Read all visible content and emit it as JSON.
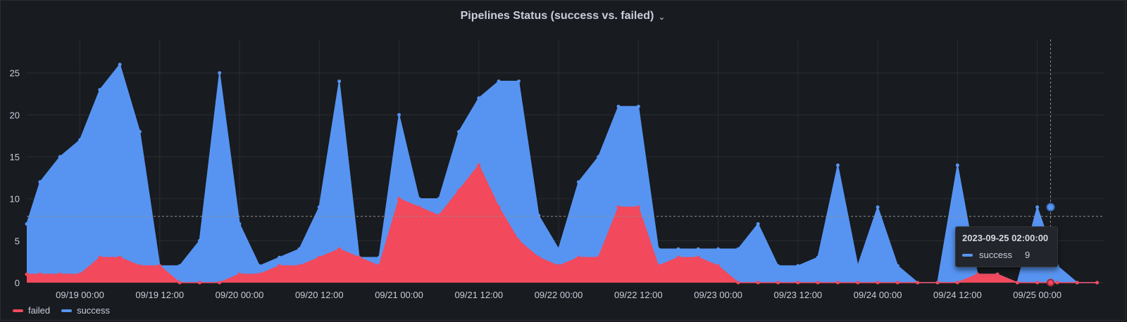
{
  "panel": {
    "title": "Pipelines Status (success vs. failed)",
    "menu_icon": "chevron-down-icon"
  },
  "tooltip": {
    "time": "2023-09-25 02:00:00",
    "series_name": "success",
    "value": "9"
  },
  "colors": {
    "failed": "#f2495c",
    "success": "#5794f2",
    "background": "#181b1f",
    "grid": "#2b2d32"
  },
  "chart_data": {
    "type": "area",
    "stacked": true,
    "title": "Pipelines Status (success vs. failed)",
    "xlabel": "",
    "ylabel": "",
    "x_unit": "hours since 09/19 00:00",
    "x_ticks": [
      {
        "t": 0,
        "label": "09/19 00:00"
      },
      {
        "t": 12,
        "label": "09/19 12:00"
      },
      {
        "t": 24,
        "label": "09/20 00:00"
      },
      {
        "t": 36,
        "label": "09/20 12:00"
      },
      {
        "t": 48,
        "label": "09/21 00:00"
      },
      {
        "t": 60,
        "label": "09/21 12:00"
      },
      {
        "t": 72,
        "label": "09/22 00:00"
      },
      {
        "t": 84,
        "label": "09/22 12:00"
      },
      {
        "t": 96,
        "label": "09/23 00:00"
      },
      {
        "t": 108,
        "label": "09/23 12:00"
      },
      {
        "t": 120,
        "label": "09/24 00:00"
      },
      {
        "t": 132,
        "label": "09/24 12:00"
      },
      {
        "t": 144,
        "label": "09/25 00:00"
      }
    ],
    "y_ticks": [
      0,
      5,
      10,
      15,
      20,
      25
    ],
    "ylim": [
      0,
      29
    ],
    "grid": true,
    "legend_position": "bottom-left",
    "x": [
      -8,
      -6,
      -3,
      0,
      3,
      6,
      9,
      12,
      15,
      18,
      21,
      24,
      27,
      30,
      33,
      36,
      39,
      42,
      45,
      48,
      51,
      54,
      57,
      60,
      63,
      66,
      69,
      72,
      75,
      78,
      81,
      84,
      87,
      90,
      93,
      96,
      99,
      102,
      105,
      108,
      111,
      114,
      117,
      120,
      123,
      126,
      129,
      132,
      135,
      138,
      141,
      144,
      147,
      150,
      153
    ],
    "series": [
      {
        "name": "failed",
        "color": "#f2495c",
        "values": [
          1,
          1,
          1,
          1,
          3,
          3,
          2,
          2,
          0,
          0,
          0,
          1,
          1,
          2,
          2,
          3,
          4,
          3,
          2,
          10,
          9,
          8,
          11,
          14,
          9,
          5,
          3,
          2,
          3,
          3,
          9,
          9,
          2,
          3,
          3,
          2,
          0,
          0,
          0,
          0,
          0,
          0,
          0,
          0,
          0,
          0,
          0,
          0,
          1,
          1,
          0,
          0,
          0,
          0,
          0
        ]
      },
      {
        "name": "success",
        "color": "#5794f2",
        "values": [
          6,
          11,
          14,
          16,
          20,
          23,
          16,
          0,
          2,
          5,
          25,
          6,
          1,
          1,
          2,
          6,
          20,
          0,
          1,
          10,
          1,
          2,
          7,
          8,
          15,
          19,
          5,
          2,
          9,
          12,
          12,
          12,
          2,
          1,
          1,
          2,
          4,
          7,
          2,
          2,
          3,
          14,
          2,
          9,
          2,
          0,
          0,
          14,
          0,
          0,
          0,
          9,
          2,
          0,
          0
        ]
      }
    ],
    "crosshair": {
      "t": 146,
      "y": 7.9
    }
  },
  "legend": [
    {
      "label": "failed",
      "color": "#f2495c"
    },
    {
      "label": "success",
      "color": "#5794f2"
    }
  ]
}
